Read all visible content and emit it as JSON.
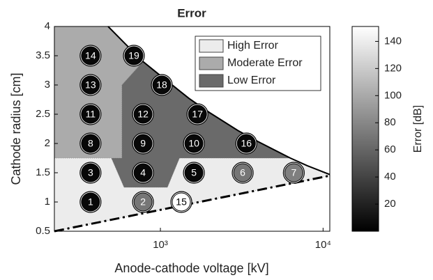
{
  "chart_data": {
    "type": "scatter",
    "title": "Error",
    "xlabel": "Anode-cathode voltage [kV]",
    "ylabel": "Cathode radius [cm]",
    "xscale": "log",
    "xlim": [
      223,
      11000
    ],
    "ylim": [
      0.5,
      4
    ],
    "xticks": [
      {
        "value": 1000,
        "label": "10³"
      },
      {
        "value": 10000,
        "label": "10⁴"
      }
    ],
    "yticks": [
      0.5,
      1,
      1.5,
      2,
      2.5,
      3,
      3.5,
      4
    ],
    "points": {
      "labels": [
        "1",
        "2",
        "3",
        "4",
        "5",
        "6",
        "7",
        "8",
        "9",
        "10",
        "11",
        "12",
        "13",
        "14",
        "15",
        "16",
        "17",
        "18",
        "19"
      ],
      "x": [
        372,
        782,
        372,
        782,
        1607,
        3206,
        6610,
        372,
        782,
        1607,
        372,
        782,
        372,
        372,
        1345,
        3375,
        1690,
        1020,
        687
      ],
      "y": [
        1,
        1,
        1.5,
        1.5,
        1.5,
        1.5,
        1.5,
        2,
        2,
        2,
        2.5,
        2.5,
        3,
        3.5,
        1,
        2,
        2.5,
        3,
        3.5
      ],
      "errors": [
        5,
        70,
        5,
        5,
        5,
        70,
        75,
        5,
        5,
        5,
        5,
        5,
        5,
        5,
        151,
        5,
        5,
        5,
        5
      ]
    },
    "regions": [
      {
        "name": "High Error",
        "color": "#ececec",
        "x": [
          223,
          11000,
          8000,
          6300,
          1310,
          1104,
          598,
          500,
          223
        ],
        "y": [
          0.5,
          1.45,
          1.62,
          1.75,
          1.75,
          1.25,
          1.25,
          1.75,
          1.75
        ]
      },
      {
        "name": "Moderate Error",
        "color": "#ababab",
        "x": [
          223,
          580,
          580,
          782,
          600,
          477,
          223
        ],
        "y": [
          1.75,
          1.75,
          3.0,
          3.4,
          3.72,
          4,
          4
        ]
      },
      {
        "name": "Low Error",
        "color": "#6a6a6a",
        "x": [
          782,
          1000,
          1500,
          2000,
          3000,
          4000,
          6300,
          1310,
          1104,
          598,
          500,
          580,
          580
        ],
        "y": [
          3.4,
          3.16,
          2.77,
          2.53,
          2.22,
          2.03,
          1.75,
          1.75,
          1.25,
          1.25,
          1.75,
          1.75,
          3.0
        ]
      }
    ],
    "boundary": {
      "x": [
        477,
        600,
        782,
        1000,
        1500,
        2000,
        3000,
        4000,
        6300,
        8000,
        11000
      ],
      "y": [
        4,
        3.72,
        3.4,
        3.16,
        2.77,
        2.53,
        2.22,
        2.03,
        1.75,
        1.62,
        1.47
      ]
    },
    "lower_line": {
      "x": [
        223,
        11000
      ],
      "y": [
        0.5,
        1.45
      ]
    },
    "colorbar": {
      "label": "Error  [dB]",
      "lim": [
        0,
        151
      ],
      "ticks": [
        20,
        40,
        60,
        80,
        100,
        120,
        140
      ]
    }
  }
}
